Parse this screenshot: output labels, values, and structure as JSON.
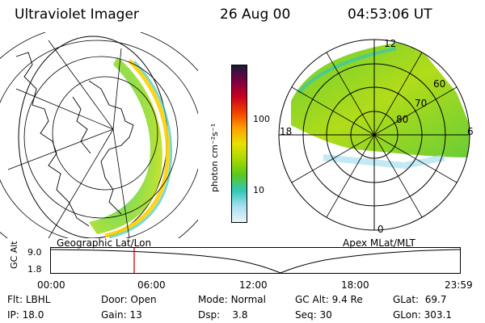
{
  "header": {
    "title": "Ultraviolet Imager",
    "date": "26 Aug 00",
    "time": "04:53:06 UT"
  },
  "colorbar": {
    "unit_label": "photon cm⁻²s⁻¹",
    "scale": "log",
    "ticks": [
      "100",
      "10"
    ],
    "stops": [
      "#1a1a3a",
      "#7a0040",
      "#c80020",
      "#f04000",
      "#ffa000",
      "#e8e000",
      "#a8d800",
      "#58c820",
      "#30c8b8",
      "#a8e0f0",
      "#e8f4f8"
    ]
  },
  "geo_panel": {
    "label": "Geographic Lat/Lon"
  },
  "polar_panel": {
    "label": "Apex MLat/MLT",
    "lat_labels": [
      "60",
      "70",
      "80"
    ],
    "mlt_labels": [
      "12",
      "18",
      "6",
      "0"
    ]
  },
  "altitude_plot": {
    "ylabel": "GC Alt",
    "yticks": [
      "9.0",
      "1.8"
    ],
    "xticks": [
      "00:00",
      "06:00",
      "12:00",
      "18:00",
      "23:59"
    ],
    "current_time_hours": 4.885
  },
  "info": {
    "filter": {
      "label": "Flt:",
      "value": "LBHL"
    },
    "ip": {
      "label": "IP:",
      "value": "18.0"
    },
    "door": {
      "label": "Door:",
      "value": "Open"
    },
    "gain": {
      "label": "Gain:",
      "value": "13"
    },
    "mode": {
      "label": "Mode:",
      "value": "Normal"
    },
    "dsp": {
      "label": "Dsp:",
      "value": "3.8"
    },
    "gc_alt": {
      "label": "GC Alt:",
      "value": "9.4 Re"
    },
    "seq": {
      "label": "Seq:",
      "value": "30"
    },
    "glat": {
      "label": "GLat:",
      "value": "69.7"
    },
    "glon": {
      "label": "GLon:",
      "value": "303.1"
    }
  }
}
